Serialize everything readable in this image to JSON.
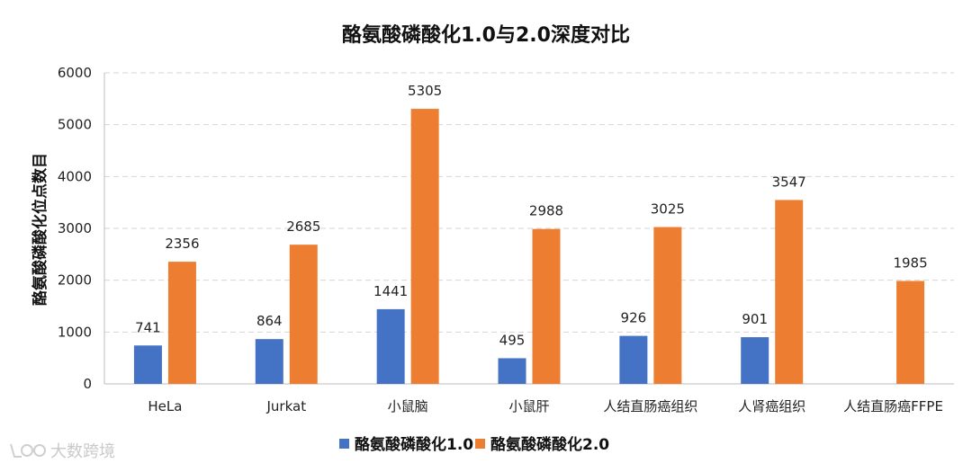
{
  "chart_data": {
    "type": "bar",
    "title": "酪氨酸磷酸化1.0与2.0深度对比",
    "ylabel": "酪氨酸磷酸化位点数目",
    "xlabel": "",
    "ylim": [
      0,
      6000
    ],
    "yticks": [
      0,
      1000,
      2000,
      3000,
      4000,
      5000,
      6000
    ],
    "grid": true,
    "legend_position": "bottom",
    "categories": [
      "HeLa",
      "Jurkat",
      "小鼠脑",
      "小鼠肝",
      "人结直肠癌组织",
      "人肾癌组织",
      "人结直肠癌FFPE"
    ],
    "series": [
      {
        "name": "酪氨酸磷酸化1.0",
        "color": "#4472C4",
        "values": [
          741,
          864,
          1441,
          495,
          926,
          901,
          null
        ]
      },
      {
        "name": "酪氨酸磷酸化2.0",
        "color": "#ED7D31",
        "values": [
          2356,
          2685,
          5305,
          2988,
          3025,
          3547,
          1985
        ]
      }
    ]
  },
  "watermark": {
    "text": "大数跨境",
    "icon": "brand-logo-icon"
  }
}
